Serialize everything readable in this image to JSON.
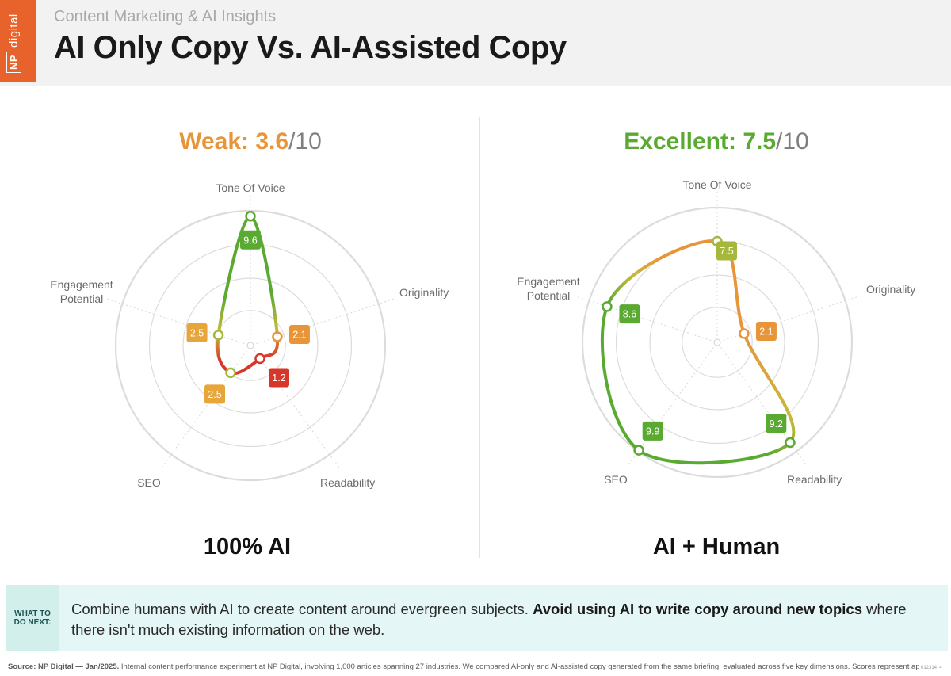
{
  "header": {
    "supertitle": "Content Marketing & AI Insights",
    "title": "AI Only Copy Vs. AI-Assisted Copy",
    "logo_np": "NP",
    "logo_word": "digital"
  },
  "colors": {
    "brand_orange": "#e8622b",
    "weak_score": "#e8953a",
    "excellent_score": "#5aaa32",
    "high_green": "#5aaa32",
    "mid_yellow_green": "#a6b83c",
    "low_orange": "#e8953a",
    "lowest_red": "#d9362b",
    "next_box_bg": "#e4f6f5"
  },
  "chart_data": [
    {
      "type": "radar",
      "score_word": "Weak:",
      "score_value": "3.6",
      "score_denominator": "/10",
      "caption": "100% AI",
      "scale_max": 10,
      "axes": [
        "Tone Of Voice",
        "Originality",
        "Readability",
        "SEO",
        "Engagement Potential"
      ],
      "values": [
        9.6,
        2.1,
        1.2,
        2.5,
        2.5
      ],
      "value_labels": [
        "9.6",
        "2.1",
        "1.2",
        "2.5",
        "2.5"
      ]
    },
    {
      "type": "radar",
      "score_word": "Excellent:",
      "score_value": "7.5",
      "score_denominator": "/10",
      "caption": "AI + Human",
      "scale_max": 10,
      "axes": [
        "Tone Of Voice",
        "Originality",
        "Readability",
        "SEO",
        "Engagement Potential"
      ],
      "values": [
        7.5,
        2.1,
        9.2,
        9.9,
        8.6
      ],
      "value_labels": [
        "7.5",
        "2.1",
        "9.2",
        "9.9",
        "8.6"
      ]
    }
  ],
  "next_steps": {
    "label_line1": "WHAT TO",
    "label_line2": "DO NEXT:",
    "text_plain": "Combine humans with AI to create content around evergreen subjects. ",
    "text_bold": "Avoid using AI to write copy around new topics",
    "text_end": " where there isn't much existing information on the web."
  },
  "source": {
    "bold": "Source: NP Digital — Jan/2025.",
    "text": " Internal content performance experiment at NP Digital, involving 1,000 articles spanning 27 industries. We compared AI-only and AI-assisted copy generated from the same briefing, evaluated across five key dimensions. Scores represent approximate measures of effectiveness for each dimension.",
    "code": "012314_4"
  }
}
